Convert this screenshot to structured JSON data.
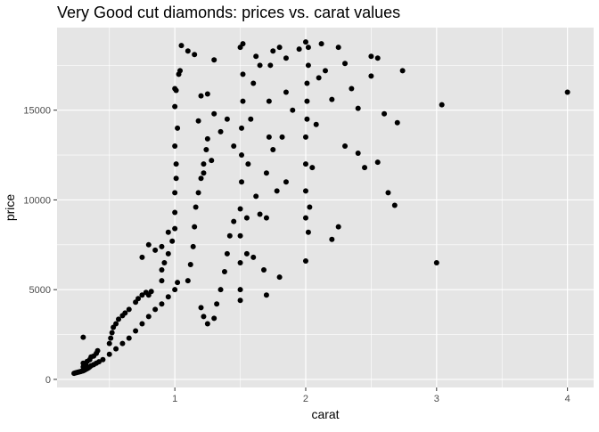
{
  "chart_data": {
    "type": "scatter",
    "title": "Very Good cut diamonds: prices vs. carat values",
    "xlabel": "carat",
    "ylabel": "price",
    "xlim": [
      0.1,
      4.2
    ],
    "ylim": [
      -450,
      19600
    ],
    "x_ticks": [
      1,
      2,
      3,
      4
    ],
    "x_tick_labels": [
      "1",
      "2",
      "3",
      "4"
    ],
    "y_ticks": [
      0,
      5000,
      10000,
      15000
    ],
    "y_tick_labels": [
      "0",
      "5000",
      "10000",
      "15000"
    ],
    "x_minor": [
      0.5,
      1.5,
      2.5,
      3.5
    ],
    "y_minor": [
      2500,
      7500,
      12500,
      17500
    ],
    "grid": true,
    "legend": "none",
    "panel_color": "#e5e5e5",
    "grid_color": "#ffffff",
    "point_color": "#000000",
    "points": [
      [
        0.23,
        336
      ],
      [
        0.24,
        360
      ],
      [
        0.25,
        380
      ],
      [
        0.26,
        400
      ],
      [
        0.27,
        420
      ],
      [
        0.28,
        440
      ],
      [
        0.29,
        460
      ],
      [
        0.3,
        480
      ],
      [
        0.31,
        520
      ],
      [
        0.32,
        560
      ],
      [
        0.33,
        600
      ],
      [
        0.34,
        640
      ],
      [
        0.35,
        700
      ],
      [
        0.36,
        760
      ],
      [
        0.38,
        820
      ],
      [
        0.4,
        900
      ],
      [
        0.42,
        980
      ],
      [
        0.45,
        1100
      ],
      [
        0.5,
        1400
      ],
      [
        0.55,
        1700
      ],
      [
        0.6,
        2000
      ],
      [
        0.65,
        2300
      ],
      [
        0.7,
        2700
      ],
      [
        0.75,
        3100
      ],
      [
        0.8,
        3500
      ],
      [
        0.85,
        3900
      ],
      [
        0.9,
        4200
      ],
      [
        0.95,
        4600
      ],
      [
        1.0,
        5000
      ],
      [
        1.02,
        5400
      ],
      [
        0.3,
        700
      ],
      [
        0.3,
        900
      ],
      [
        0.32,
        800
      ],
      [
        0.33,
        1000
      ],
      [
        0.35,
        1100
      ],
      [
        0.36,
        1250
      ],
      [
        0.38,
        1300
      ],
      [
        0.4,
        1450
      ],
      [
        0.41,
        1600
      ],
      [
        0.3,
        2350
      ],
      [
        0.5,
        2000
      ],
      [
        0.51,
        2300
      ],
      [
        0.52,
        2600
      ],
      [
        0.53,
        2900
      ],
      [
        0.55,
        3100
      ],
      [
        0.57,
        3350
      ],
      [
        0.6,
        3550
      ],
      [
        0.62,
        3700
      ],
      [
        0.65,
        3900
      ],
      [
        0.7,
        4300
      ],
      [
        0.72,
        4500
      ],
      [
        0.75,
        4700
      ],
      [
        0.78,
        4850
      ],
      [
        0.8,
        4700
      ],
      [
        0.82,
        4900
      ],
      [
        0.9,
        5500
      ],
      [
        0.9,
        6100
      ],
      [
        0.92,
        6500
      ],
      [
        0.95,
        7000
      ],
      [
        0.98,
        7700
      ],
      [
        1.0,
        8400
      ],
      [
        1.0,
        9300
      ],
      [
        1.0,
        10400
      ],
      [
        1.01,
        11200
      ],
      [
        1.01,
        12000
      ],
      [
        1.0,
        13000
      ],
      [
        1.02,
        14000
      ],
      [
        1.0,
        15200
      ],
      [
        1.01,
        16100
      ],
      [
        1.0,
        16200
      ],
      [
        1.03,
        17000
      ],
      [
        1.04,
        17200
      ],
      [
        1.05,
        18600
      ],
      [
        1.1,
        18300
      ],
      [
        1.15,
        18100
      ],
      [
        0.95,
        8200
      ],
      [
        0.9,
        7400
      ],
      [
        0.85,
        7200
      ],
      [
        0.8,
        7500
      ],
      [
        0.75,
        6800
      ],
      [
        1.1,
        5500
      ],
      [
        1.12,
        6400
      ],
      [
        1.14,
        7400
      ],
      [
        1.15,
        8500
      ],
      [
        1.16,
        9600
      ],
      [
        1.18,
        10400
      ],
      [
        1.2,
        11200
      ],
      [
        1.22,
        12000
      ],
      [
        1.24,
        12800
      ],
      [
        1.25,
        13400
      ],
      [
        1.2,
        4000
      ],
      [
        1.22,
        3500
      ],
      [
        1.25,
        3100
      ],
      [
        1.3,
        3400
      ],
      [
        1.32,
        4200
      ],
      [
        1.35,
        5000
      ],
      [
        1.38,
        6000
      ],
      [
        1.4,
        7000
      ],
      [
        1.42,
        8000
      ],
      [
        1.45,
        8800
      ],
      [
        1.18,
        14400
      ],
      [
        1.2,
        15800
      ],
      [
        1.25,
        15900
      ],
      [
        1.3,
        14800
      ],
      [
        1.35,
        13800
      ],
      [
        1.4,
        14500
      ],
      [
        1.45,
        13000
      ],
      [
        1.3,
        17800
      ],
      [
        1.28,
        12200
      ],
      [
        1.22,
        11500
      ],
      [
        1.5,
        5000
      ],
      [
        1.5,
        6500
      ],
      [
        1.5,
        8000
      ],
      [
        1.5,
        9500
      ],
      [
        1.51,
        11000
      ],
      [
        1.51,
        12500
      ],
      [
        1.51,
        14000
      ],
      [
        1.52,
        15500
      ],
      [
        1.52,
        17000
      ],
      [
        1.52,
        18700
      ],
      [
        1.5,
        4400
      ],
      [
        1.5,
        18500
      ],
      [
        1.55,
        7000
      ],
      [
        1.55,
        9000
      ],
      [
        1.56,
        12000
      ],
      [
        1.58,
        14500
      ],
      [
        1.6,
        16500
      ],
      [
        1.62,
        18000
      ],
      [
        1.65,
        17500
      ],
      [
        1.65,
        9200
      ],
      [
        1.6,
        6800
      ],
      [
        1.7,
        9000
      ],
      [
        1.7,
        11500
      ],
      [
        1.72,
        13500
      ],
      [
        1.72,
        15500
      ],
      [
        1.73,
        17500
      ],
      [
        1.75,
        18300
      ],
      [
        1.7,
        4700
      ],
      [
        1.8,
        5700
      ],
      [
        1.75,
        12800
      ],
      [
        1.8,
        18500
      ],
      [
        1.85,
        17900
      ],
      [
        1.85,
        16000
      ],
      [
        1.82,
        13500
      ],
      [
        1.9,
        15000
      ],
      [
        1.95,
        18400
      ],
      [
        1.78,
        10500
      ],
      [
        1.85,
        11000
      ],
      [
        1.68,
        6100
      ],
      [
        1.62,
        10200
      ],
      [
        2.0,
        9000
      ],
      [
        2.0,
        10500
      ],
      [
        2.0,
        12000
      ],
      [
        2.0,
        13500
      ],
      [
        2.01,
        14500
      ],
      [
        2.01,
        15500
      ],
      [
        2.01,
        16500
      ],
      [
        2.02,
        17500
      ],
      [
        2.02,
        18500
      ],
      [
        2.0,
        18800
      ],
      [
        2.0,
        6600
      ],
      [
        2.02,
        8200
      ],
      [
        2.03,
        9600
      ],
      [
        2.05,
        11800
      ],
      [
        2.08,
        14200
      ],
      [
        2.1,
        16800
      ],
      [
        2.12,
        18700
      ],
      [
        2.15,
        17200
      ],
      [
        2.2,
        15600
      ],
      [
        2.2,
        7800
      ],
      [
        2.25,
        18500
      ],
      [
        2.3,
        17600
      ],
      [
        2.35,
        16200
      ],
      [
        2.4,
        15100
      ],
      [
        2.3,
        13000
      ],
      [
        2.25,
        8500
      ],
      [
        2.5,
        18000
      ],
      [
        2.45,
        11800
      ],
      [
        2.55,
        12100
      ],
      [
        2.5,
        16900
      ],
      [
        2.55,
        17900
      ],
      [
        2.6,
        14800
      ],
      [
        2.63,
        10400
      ],
      [
        2.68,
        9700
      ],
      [
        2.7,
        14300
      ],
      [
        2.74,
        17200
      ],
      [
        3.0,
        6500
      ],
      [
        3.04,
        15300
      ],
      [
        4.0,
        16000
      ],
      [
        2.4,
        12600
      ]
    ]
  }
}
